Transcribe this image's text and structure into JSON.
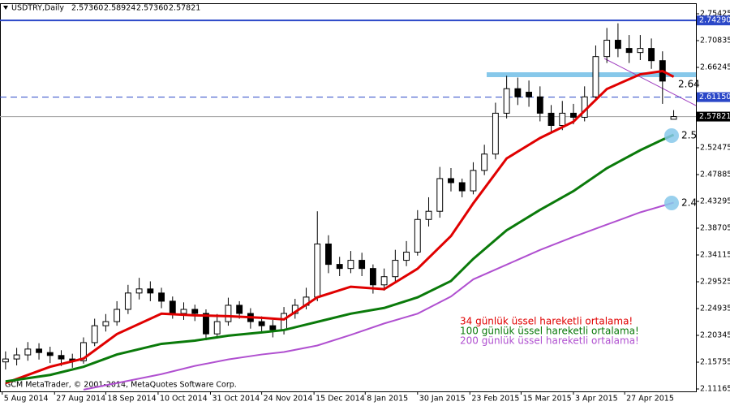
{
  "chart_data": {
    "type": "candlestick",
    "title": "USDTRY,Daily",
    "header_values": [
      "2.57360",
      "2.58924",
      "2.57360",
      "2.57821"
    ],
    "copyright": "GCM MetaTrader, © 2001-2014, MetaQuotes Software Corp.",
    "xlim": [
      -0.5,
      62
    ],
    "xticks": [
      {
        "value": -0.3,
        "label": "5 Aug 2014"
      },
      {
        "value": 4.4,
        "label": "27 Aug 2014"
      },
      {
        "value": 9.0,
        "label": "18 Sep 2014"
      },
      {
        "value": 13.7,
        "label": "10 Oct 2014"
      },
      {
        "value": 18.4,
        "label": "31 Oct 2014"
      },
      {
        "value": 23.0,
        "label": "24 Nov 2014"
      },
      {
        "value": 27.7,
        "label": "15 Dec 2014"
      },
      {
        "value": 32.3,
        "label": "8 Jan 2015"
      },
      {
        "value": 37.0,
        "label": "30 Jan 2015"
      },
      {
        "value": 41.7,
        "label": "23 Feb 2015"
      },
      {
        "value": 46.3,
        "label": "15 Mar 2015"
      },
      {
        "value": 51.0,
        "label": "3 Apr 2015"
      },
      {
        "value": 55.6,
        "label": "27 Apr 2015"
      }
    ],
    "ylim": [
      2.1075,
      2.764
    ],
    "yticks": [
      2.75425,
      2.70835,
      2.66245,
      2.52475,
      2.47885,
      2.43295,
      2.38705,
      2.34115,
      2.29525,
      2.24935,
      2.20345,
      2.15755,
      2.11165
    ],
    "candles": {
      "open": [
        2.158,
        2.163,
        2.17,
        2.18,
        2.174,
        2.169,
        2.163,
        2.16,
        2.191,
        2.22,
        2.227,
        2.248,
        2.276,
        2.283,
        2.276,
        2.262,
        2.241,
        2.248,
        2.241,
        2.206,
        2.227,
        2.255,
        2.241,
        2.227,
        2.22,
        2.213,
        2.241,
        2.255,
        2.269,
        2.36,
        2.325,
        2.318,
        2.332,
        2.318,
        2.29,
        2.304,
        2.332,
        2.346,
        2.402,
        2.416,
        2.472,
        2.465,
        2.451,
        2.486,
        2.514,
        2.584,
        2.626,
        2.62,
        2.612,
        2.584,
        2.563,
        2.584,
        2.577,
        2.612,
        2.681,
        2.709,
        2.695,
        2.688,
        2.695,
        2.674,
        2.5736
      ],
      "high": [
        2.176,
        2.182,
        2.192,
        2.19,
        2.184,
        2.178,
        2.172,
        2.2,
        2.232,
        2.24,
        2.262,
        2.29,
        2.302,
        2.296,
        2.285,
        2.27,
        2.26,
        2.256,
        2.248,
        2.24,
        2.268,
        2.262,
        2.25,
        2.236,
        2.23,
        2.252,
        2.266,
        2.285,
        2.416,
        2.375,
        2.338,
        2.348,
        2.345,
        2.325,
        2.318,
        2.35,
        2.365,
        2.418,
        2.44,
        2.492,
        2.49,
        2.472,
        2.5,
        2.53,
        2.602,
        2.648,
        2.645,
        2.64,
        2.63,
        2.598,
        2.605,
        2.6,
        2.63,
        2.7,
        2.73,
        2.738,
        2.718,
        2.718,
        2.712,
        2.69,
        2.58924
      ],
      "low": [
        2.145,
        2.152,
        2.16,
        2.162,
        2.156,
        2.151,
        2.148,
        2.155,
        2.185,
        2.21,
        2.22,
        2.24,
        2.265,
        2.262,
        2.25,
        2.232,
        2.23,
        2.228,
        2.195,
        2.198,
        2.22,
        2.232,
        2.215,
        2.21,
        2.2,
        2.205,
        2.232,
        2.248,
        2.262,
        2.31,
        2.305,
        2.31,
        2.305,
        2.275,
        2.28,
        2.295,
        2.322,
        2.34,
        2.39,
        2.405,
        2.45,
        2.44,
        2.445,
        2.478,
        2.505,
        2.575,
        2.598,
        2.595,
        2.57,
        2.552,
        2.555,
        2.565,
        2.57,
        2.605,
        2.67,
        2.68,
        2.67,
        2.675,
        2.66,
        2.6,
        2.5736
      ],
      "close": [
        2.163,
        2.17,
        2.18,
        2.174,
        2.169,
        2.163,
        2.16,
        2.191,
        2.22,
        2.227,
        2.248,
        2.276,
        2.283,
        2.276,
        2.262,
        2.241,
        2.248,
        2.241,
        2.206,
        2.227,
        2.255,
        2.241,
        2.227,
        2.22,
        2.213,
        2.241,
        2.255,
        2.269,
        2.36,
        2.325,
        2.318,
        2.332,
        2.318,
        2.29,
        2.304,
        2.332,
        2.346,
        2.402,
        2.416,
        2.472,
        2.465,
        2.451,
        2.486,
        2.514,
        2.584,
        2.626,
        2.612,
        2.612,
        2.584,
        2.563,
        2.584,
        2.577,
        2.612,
        2.681,
        2.709,
        2.695,
        2.688,
        2.695,
        2.674,
        2.639,
        2.57821
      ]
    },
    "series": [
      {
        "name": "34 günlük üssel hareketli ortalama!",
        "color": "#e00000",
        "x": [
          0,
          4,
          7,
          10,
          14,
          17,
          20,
          23,
          25,
          28,
          31,
          34,
          37,
          40,
          42,
          45,
          48,
          51,
          54,
          57,
          59,
          60
        ],
        "values": [
          2.1217,
          2.1497,
          2.1637,
          2.2057,
          2.2406,
          2.2378,
          2.2364,
          2.2336,
          2.2308,
          2.2686,
          2.2868,
          2.2826,
          2.3176,
          2.3736,
          2.4296,
          2.5065,
          2.5415,
          2.5695,
          2.6255,
          2.6506,
          2.6562,
          2.6464
        ]
      },
      {
        "name": "100 günlük üssel hareketli ortalama!",
        "color": "#0a7a0a",
        "x": [
          0,
          4,
          7,
          10,
          14,
          17,
          20,
          23,
          25,
          28,
          31,
          34,
          37,
          40,
          42,
          45,
          48,
          51,
          54,
          57,
          59,
          60
        ],
        "values": [
          2.1245,
          2.1357,
          2.1497,
          2.1707,
          2.1889,
          2.1945,
          2.2029,
          2.2085,
          2.2126,
          2.2266,
          2.2406,
          2.2504,
          2.2686,
          2.2966,
          2.3344,
          2.3834,
          2.4184,
          2.4506,
          2.4898,
          2.5206,
          2.5387,
          2.5471
        ]
      },
      {
        "name": "200 günlük üssel hareketli ortalama!",
        "color": "#b050d0",
        "x": [
          0,
          4,
          7,
          10,
          14,
          17,
          20,
          23,
          25,
          28,
          31,
          34,
          37,
          40,
          42,
          45,
          48,
          51,
          54,
          57,
          59,
          60
        ],
        "values": [
          null,
          null,
          2.1105,
          2.1217,
          2.1371,
          2.1511,
          2.1623,
          2.1707,
          2.1749,
          2.1861,
          2.2043,
          2.2238,
          2.2406,
          2.27,
          2.2994,
          2.3246,
          2.3498,
          2.3722,
          2.3932,
          2.4142,
          2.4253,
          2.4309
        ]
      }
    ],
    "levels": [
      {
        "value": 2.7429,
        "label": "2.74290",
        "color": "#2b48c8",
        "style": "solid"
      },
      {
        "value": 2.6115,
        "label": "2.61150",
        "color": "#2b48c8",
        "style": "dashed"
      },
      {
        "value": 2.57821,
        "label": "2.57821",
        "color": "#000000",
        "style": "current"
      }
    ],
    "annotations": [
      "2.64",
      "2.5",
      "2.4"
    ]
  }
}
